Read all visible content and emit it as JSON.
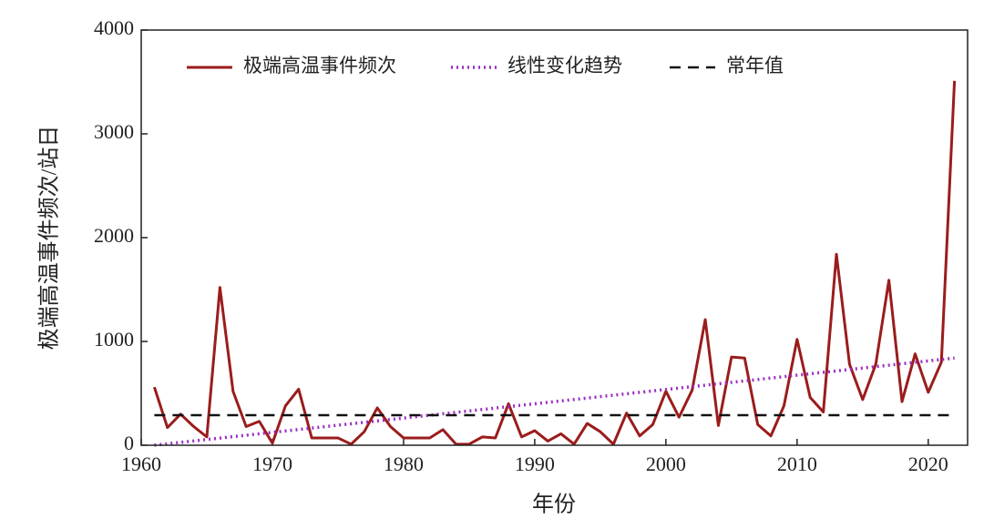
{
  "chart_data": {
    "type": "line",
    "xlabel": "年份",
    "ylabel": "极端高温事件频次/站日",
    "x": [
      1961,
      1962,
      1963,
      1964,
      1965,
      1966,
      1967,
      1968,
      1969,
      1970,
      1971,
      1972,
      1973,
      1974,
      1975,
      1976,
      1977,
      1978,
      1979,
      1980,
      1981,
      1982,
      1983,
      1984,
      1985,
      1986,
      1987,
      1988,
      1989,
      1990,
      1991,
      1992,
      1993,
      1994,
      1995,
      1996,
      1997,
      1998,
      1999,
      2000,
      2001,
      2002,
      2003,
      2004,
      2005,
      2006,
      2007,
      2008,
      2009,
      2010,
      2011,
      2012,
      2013,
      2014,
      2015,
      2016,
      2017,
      2018,
      2019,
      2020,
      2021,
      2022
    ],
    "series": [
      {
        "name": "极端高温事件频次",
        "color": "#9b1c1c",
        "dash": "solid",
        "values": [
          560,
          170,
          300,
          180,
          80,
          1520,
          520,
          180,
          230,
          20,
          380,
          540,
          70,
          70,
          70,
          10,
          130,
          360,
          180,
          70,
          70,
          70,
          150,
          10,
          10,
          80,
          70,
          400,
          80,
          140,
          40,
          110,
          10,
          210,
          130,
          10,
          310,
          90,
          200,
          520,
          270,
          530,
          1210,
          190,
          850,
          840,
          200,
          90,
          380,
          1020,
          460,
          320,
          1840,
          780,
          440,
          780,
          1590,
          420,
          880,
          510,
          800,
          3510
        ]
      },
      {
        "name": "线性变化趋势",
        "color": "#9b2fc0",
        "dash": "dotted",
        "x": [
          1961,
          2022
        ],
        "values": [
          0,
          840
        ]
      },
      {
        "name": "常年值",
        "color": "#111111",
        "dash": "dashed",
        "x": [
          1961,
          2022
        ],
        "values": [
          290,
          290
        ]
      }
    ],
    "xlim": [
      1960,
      2023
    ],
    "ylim": [
      0,
      4000
    ],
    "xticks": [
      1960,
      1970,
      1980,
      1990,
      2000,
      2010,
      2020
    ],
    "yticks": [
      0,
      1000,
      2000,
      3000,
      4000
    ]
  }
}
